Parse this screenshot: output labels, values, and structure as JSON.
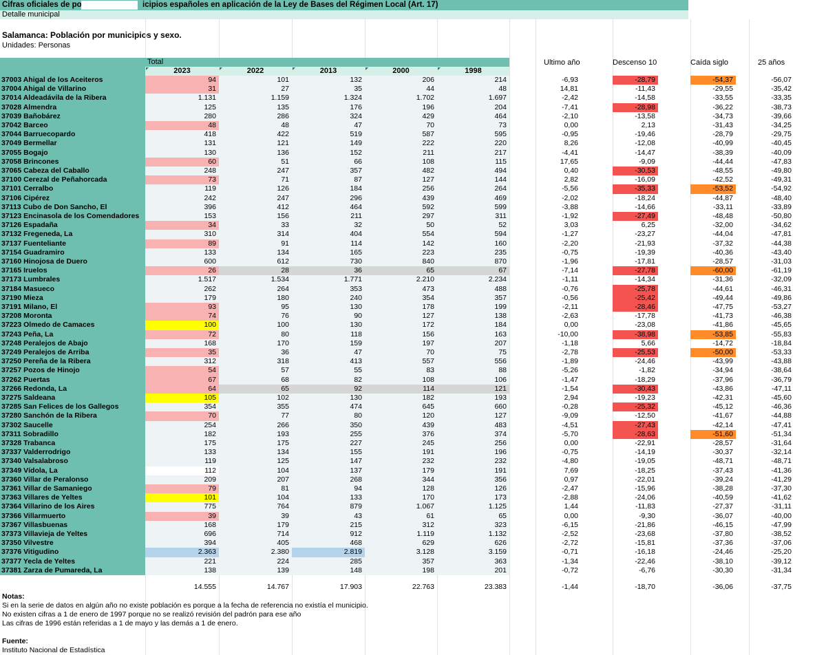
{
  "sheet": {
    "title_left": "Cifras oficiales de po",
    "title_right": "icipios españoles en aplicación de la Ley de Bases del Régimen Local (Art. 17)",
    "subtitle": "Detalle municipal",
    "table_title": "Salamanca: Población por municipios y sexo.",
    "units": "Unidades: Personas",
    "total_label": "Total",
    "years": [
      "2023",
      "2022",
      "2013",
      "2000",
      "1998"
    ],
    "extra_headers": [
      "Ultimo año",
      "Descenso 10",
      "Caída siglo",
      "25 años"
    ]
  },
  "colors": {
    "teal": "#6fbfb1",
    "teal_light": "#d7efe9",
    "pink": "#f8b2b2",
    "yellow": "#ffff00",
    "blue": "#b4d4ee",
    "grey": "#d6d6d6",
    "red": "#f4534f",
    "orange": "#ff8b2a"
  },
  "rows": [
    {
      "name": "37003 Ahigal de los Aceiteros",
      "v": [
        "94",
        "101",
        "132",
        "206",
        "214"
      ],
      "e": [
        "-6,93",
        "-28,79",
        "-54,37",
        "-56,07"
      ],
      "h0": "pink",
      "h2": "",
      "row": "",
      "he1": "red",
      "he2": "orange"
    },
    {
      "name": "37004 Ahigal de Villarino",
      "v": [
        "31",
        "27",
        "35",
        "44",
        "48"
      ],
      "e": [
        "14,81",
        "-11,43",
        "-29,55",
        "-35,42"
      ],
      "h0": "pink",
      "h2": "",
      "row": "",
      "he1": "",
      "he2": ""
    },
    {
      "name": "37014 Aldeadávila de la Ribera",
      "v": [
        "1.131",
        "1.159",
        "1.324",
        "1.702",
        "1.697"
      ],
      "e": [
        "-2,42",
        "-14,58",
        "-33,55",
        "-33,35"
      ],
      "h0": "",
      "h2": "",
      "row": "",
      "he1": "",
      "he2": ""
    },
    {
      "name": "37028 Almendra",
      "v": [
        "125",
        "135",
        "176",
        "196",
        "204"
      ],
      "e": [
        "-7,41",
        "-28,98",
        "-36,22",
        "-38,73"
      ],
      "h0": "",
      "h2": "",
      "row": "",
      "he1": "red",
      "he2": ""
    },
    {
      "name": "37039 Bañobárez",
      "v": [
        "280",
        "286",
        "324",
        "429",
        "464"
      ],
      "e": [
        "-2,10",
        "-13,58",
        "-34,73",
        "-39,66"
      ],
      "h0": "",
      "h2": "",
      "row": "",
      "he1": "",
      "he2": ""
    },
    {
      "name": "37042 Barceo",
      "v": [
        "48",
        "48",
        "47",
        "70",
        "73"
      ],
      "e": [
        "0,00",
        "2,13",
        "-31,43",
        "-34,25"
      ],
      "h0": "pink",
      "h2": "",
      "row": "",
      "he1": "",
      "he2": ""
    },
    {
      "name": "37044 Barruecopardo",
      "v": [
        "418",
        "422",
        "519",
        "587",
        "595"
      ],
      "e": [
        "-0,95",
        "-19,46",
        "-28,79",
        "-29,75"
      ],
      "h0": "",
      "h2": "",
      "row": "",
      "he1": "",
      "he2": ""
    },
    {
      "name": "37049 Bermellar",
      "v": [
        "131",
        "121",
        "149",
        "222",
        "220"
      ],
      "e": [
        "8,26",
        "-12,08",
        "-40,99",
        "-40,45"
      ],
      "h0": "",
      "h2": "",
      "row": "",
      "he1": "",
      "he2": ""
    },
    {
      "name": "37055 Bogajo",
      "v": [
        "130",
        "136",
        "152",
        "211",
        "217"
      ],
      "e": [
        "-4,41",
        "-14,47",
        "-38,39",
        "-40,09"
      ],
      "h0": "",
      "h2": "",
      "row": "",
      "he1": "",
      "he2": ""
    },
    {
      "name": "37058 Brincones",
      "v": [
        "60",
        "51",
        "66",
        "108",
        "115"
      ],
      "e": [
        "17,65",
        "-9,09",
        "-44,44",
        "-47,83"
      ],
      "h0": "pink",
      "h2": "",
      "row": "",
      "he1": "",
      "he2": ""
    },
    {
      "name": "37065 Cabeza del Caballo",
      "v": [
        "248",
        "247",
        "357",
        "482",
        "494"
      ],
      "e": [
        "0,40",
        "-30,53",
        "-48,55",
        "-49,80"
      ],
      "h0": "",
      "h2": "",
      "row": "",
      "he1": "red",
      "he2": ""
    },
    {
      "name": "37100 Cerezal de Peñahorcada",
      "v": [
        "73",
        "71",
        "87",
        "127",
        "144"
      ],
      "e": [
        "2,82",
        "-16,09",
        "-42,52",
        "-49,31"
      ],
      "h0": "pink",
      "h2": "",
      "row": "",
      "he1": "",
      "he2": ""
    },
    {
      "name": "37101 Cerralbo",
      "v": [
        "119",
        "126",
        "184",
        "256",
        "264"
      ],
      "e": [
        "-5,56",
        "-35,33",
        "-53,52",
        "-54,92"
      ],
      "h0": "",
      "h2": "",
      "row": "",
      "he1": "red",
      "he2": "orange"
    },
    {
      "name": "37106 Cipérez",
      "v": [
        "242",
        "247",
        "296",
        "439",
        "469"
      ],
      "e": [
        "-2,02",
        "-18,24",
        "-44,87",
        "-48,40"
      ],
      "h0": "",
      "h2": "",
      "row": "",
      "he1": "",
      "he2": ""
    },
    {
      "name": "37113 Cubo de Don Sancho, El",
      "v": [
        "396",
        "412",
        "464",
        "592",
        "599"
      ],
      "e": [
        "-3,88",
        "-14,66",
        "-33,11",
        "-33,89"
      ],
      "h0": "",
      "h2": "",
      "row": "",
      "he1": "",
      "he2": ""
    },
    {
      "name": "37123 Encinasola de los Comendadores",
      "v": [
        "153",
        "156",
        "211",
        "297",
        "311"
      ],
      "e": [
        "-1,92",
        "-27,49",
        "-48,48",
        "-50,80"
      ],
      "h0": "",
      "h2": "",
      "row": "",
      "he1": "red",
      "he2": ""
    },
    {
      "name": "37126 Espadaña",
      "v": [
        "34",
        "33",
        "32",
        "50",
        "52"
      ],
      "e": [
        "3,03",
        "6,25",
        "-32,00",
        "-34,62"
      ],
      "h0": "pink",
      "h2": "",
      "row": "",
      "he1": "",
      "he2": ""
    },
    {
      "name": "37132 Fregeneda, La",
      "v": [
        "310",
        "314",
        "404",
        "554",
        "594"
      ],
      "e": [
        "-1,27",
        "-23,27",
        "-44,04",
        "-47,81"
      ],
      "h0": "",
      "h2": "",
      "row": "",
      "he1": "",
      "he2": ""
    },
    {
      "name": "37137 Fuenteliante",
      "v": [
        "89",
        "91",
        "114",
        "142",
        "160"
      ],
      "e": [
        "-2,20",
        "-21,93",
        "-37,32",
        "-44,38"
      ],
      "h0": "pink",
      "h2": "",
      "row": "",
      "he1": "",
      "he2": ""
    },
    {
      "name": "37154 Guadramiro",
      "v": [
        "133",
        "134",
        "165",
        "223",
        "235"
      ],
      "e": [
        "-0,75",
        "-19,39",
        "-40,36",
        "-43,40"
      ],
      "h0": "",
      "h2": "",
      "row": "",
      "he1": "",
      "he2": ""
    },
    {
      "name": "37160 Hinojosa de Duero",
      "v": [
        "600",
        "612",
        "730",
        "840",
        "870"
      ],
      "e": [
        "-1,96",
        "-17,81",
        "-28,57",
        "-31,03"
      ],
      "h0": "",
      "h2": "",
      "row": "",
      "he1": "",
      "he2": ""
    },
    {
      "name": "37165 Iruelos",
      "v": [
        "26",
        "28",
        "36",
        "65",
        "67"
      ],
      "e": [
        "-7,14",
        "-27,78",
        "-60,00",
        "-61,19"
      ],
      "h0": "pink",
      "h2": "",
      "row": "grey",
      "he1": "red",
      "he2": "orange"
    },
    {
      "name": "37173 Lumbrales",
      "v": [
        "1.517",
        "1.534",
        "1.771",
        "2.210",
        "2.234"
      ],
      "e": [
        "-1,11",
        "-14,34",
        "-31,36",
        "-32,09"
      ],
      "h0": "",
      "h2": "",
      "row": "",
      "he1": "",
      "he2": ""
    },
    {
      "name": "37184 Masueco",
      "v": [
        "262",
        "264",
        "353",
        "473",
        "488"
      ],
      "e": [
        "-0,76",
        "-25,78",
        "-44,61",
        "-46,31"
      ],
      "h0": "",
      "h2": "",
      "row": "",
      "he1": "red",
      "he2": ""
    },
    {
      "name": "37190 Mieza",
      "v": [
        "179",
        "180",
        "240",
        "354",
        "357"
      ],
      "e": [
        "-0,56",
        "-25,42",
        "-49,44",
        "-49,86"
      ],
      "h0": "",
      "h2": "",
      "row": "",
      "he1": "red",
      "he2": ""
    },
    {
      "name": "37191 Milano, El",
      "v": [
        "93",
        "95",
        "130",
        "178",
        "199"
      ],
      "e": [
        "-2,11",
        "-28,46",
        "-47,75",
        "-53,27"
      ],
      "h0": "pink",
      "h2": "",
      "row": "",
      "he1": "red",
      "he2": ""
    },
    {
      "name": "37208 Moronta",
      "v": [
        "74",
        "76",
        "90",
        "127",
        "138"
      ],
      "e": [
        "-2,63",
        "-17,78",
        "-41,73",
        "-46,38"
      ],
      "h0": "pink",
      "h2": "",
      "row": "",
      "he1": "",
      "he2": ""
    },
    {
      "name": "37223 Olmedo de Camaces",
      "v": [
        "100",
        "100",
        "130",
        "172",
        "184"
      ],
      "e": [
        "0,00",
        "-23,08",
        "-41,86",
        "-45,65"
      ],
      "h0": "yellow",
      "h2": "",
      "row": "",
      "he1": "",
      "he2": ""
    },
    {
      "name": "37243 Peña, La",
      "v": [
        "72",
        "80",
        "118",
        "156",
        "163"
      ],
      "e": [
        "-10,00",
        "-38,98",
        "-53,85",
        "-55,83"
      ],
      "h0": "pink",
      "h2": "",
      "row": "",
      "he1": "red",
      "he2": "orange"
    },
    {
      "name": "37248 Peralejos de Abajo",
      "v": [
        "168",
        "170",
        "159",
        "197",
        "207"
      ],
      "e": [
        "-1,18",
        "5,66",
        "-14,72",
        "-18,84"
      ],
      "h0": "",
      "h2": "",
      "row": "",
      "he1": "",
      "he2": ""
    },
    {
      "name": "37249 Peralejos de Arriba",
      "v": [
        "35",
        "36",
        "47",
        "70",
        "75"
      ],
      "e": [
        "-2,78",
        "-25,53",
        "-50,00",
        "-53,33"
      ],
      "h0": "pink",
      "h2": "",
      "row": "",
      "he1": "red",
      "he2": "orange"
    },
    {
      "name": "37250 Pereña de la Ribera",
      "v": [
        "312",
        "318",
        "413",
        "557",
        "556"
      ],
      "e": [
        "-1,89",
        "-24,46",
        "-43,99",
        "-43,88"
      ],
      "h0": "",
      "h2": "",
      "row": "",
      "he1": "",
      "he2": ""
    },
    {
      "name": "37257 Pozos de Hinojo",
      "v": [
        "54",
        "57",
        "55",
        "83",
        "88"
      ],
      "e": [
        "-5,26",
        "-1,82",
        "-34,94",
        "-38,64"
      ],
      "h0": "pink",
      "h2": "",
      "row": "",
      "he1": "",
      "he2": ""
    },
    {
      "name": "37262 Puertas",
      "v": [
        "67",
        "68",
        "82",
        "108",
        "106"
      ],
      "e": [
        "-1,47",
        "-18,29",
        "-37,96",
        "-36,79"
      ],
      "h0": "pink",
      "h2": "",
      "row": "",
      "he1": "",
      "he2": ""
    },
    {
      "name": "37266 Redonda, La",
      "v": [
        "64",
        "65",
        "92",
        "114",
        "121"
      ],
      "e": [
        "-1,54",
        "-30,43",
        "-43,86",
        "-47,11"
      ],
      "h0": "pink",
      "h2": "",
      "row": "grey",
      "he1": "red",
      "he2": ""
    },
    {
      "name": "37275 Saldeana",
      "v": [
        "105",
        "102",
        "130",
        "182",
        "193"
      ],
      "e": [
        "2,94",
        "-19,23",
        "-42,31",
        "-45,60"
      ],
      "h0": "yellow",
      "h2": "",
      "row": "",
      "he1": "",
      "he2": ""
    },
    {
      "name": "37285 San Felices de los Gallegos",
      "v": [
        "354",
        "355",
        "474",
        "645",
        "660"
      ],
      "e": [
        "-0,28",
        "-25,32",
        "-45,12",
        "-46,36"
      ],
      "h0": "",
      "h2": "",
      "row": "",
      "he1": "red",
      "he2": ""
    },
    {
      "name": "37280 Sanchón de la Ribera",
      "v": [
        "70",
        "77",
        "80",
        "120",
        "127"
      ],
      "e": [
        "-9,09",
        "-12,50",
        "-41,67",
        "-44,88"
      ],
      "h0": "pink",
      "h2": "",
      "row": "",
      "he1": "",
      "he2": ""
    },
    {
      "name": "37302 Saucelle",
      "v": [
        "254",
        "266",
        "350",
        "439",
        "483"
      ],
      "e": [
        "-4,51",
        "-27,43",
        "-42,14",
        "-47,41"
      ],
      "h0": "",
      "h2": "",
      "row": "",
      "he1": "red",
      "he2": ""
    },
    {
      "name": "37311 Sobradillo",
      "v": [
        "182",
        "193",
        "255",
        "376",
        "374"
      ],
      "e": [
        "-5,70",
        "-28,63",
        "-51,60",
        "-51,34"
      ],
      "h0": "",
      "h2": "",
      "row": "",
      "he1": "red",
      "he2": "orange"
    },
    {
      "name": "37328 Trabanca",
      "v": [
        "175",
        "175",
        "227",
        "245",
        "256"
      ],
      "e": [
        "0,00",
        "-22,91",
        "-28,57",
        "-31,64"
      ],
      "h0": "",
      "h2": "",
      "row": "",
      "he1": "",
      "he2": ""
    },
    {
      "name": "37337 Valderrodrigo",
      "v": [
        "133",
        "134",
        "155",
        "191",
        "196"
      ],
      "e": [
        "-0,75",
        "-14,19",
        "-30,37",
        "-32,14"
      ],
      "h0": "",
      "h2": "",
      "row": "",
      "he1": "",
      "he2": ""
    },
    {
      "name": "37340 Valsalabroso",
      "v": [
        "119",
        "125",
        "147",
        "232",
        "232"
      ],
      "e": [
        "-4,80",
        "-19,05",
        "-48,71",
        "-48,71"
      ],
      "h0": "",
      "h2": "",
      "row": "",
      "he1": "",
      "he2": ""
    },
    {
      "name": "37349 Vídola, La",
      "v": [
        "112",
        "104",
        "137",
        "179",
        "191"
      ],
      "e": [
        "7,69",
        "-18,25",
        "-37,43",
        "-41,36"
      ],
      "h0": "white",
      "h2": "",
      "row": "",
      "he1": "",
      "he2": ""
    },
    {
      "name": "37360 Villar de Peralonso",
      "v": [
        "209",
        "207",
        "268",
        "344",
        "356"
      ],
      "e": [
        "0,97",
        "-22,01",
        "-39,24",
        "-41,29"
      ],
      "h0": "",
      "h2": "",
      "row": "",
      "he1": "",
      "he2": ""
    },
    {
      "name": "37361 Villar de Samaniego",
      "v": [
        "79",
        "81",
        "94",
        "128",
        "126"
      ],
      "e": [
        "-2,47",
        "-15,96",
        "-38,28",
        "-37,30"
      ],
      "h0": "pink",
      "h2": "",
      "row": "",
      "he1": "",
      "he2": ""
    },
    {
      "name": "37363 Villares de Yeltes",
      "v": [
        "101",
        "104",
        "133",
        "170",
        "173"
      ],
      "e": [
        "-2,88",
        "-24,06",
        "-40,59",
        "-41,62"
      ],
      "h0": "yellow",
      "h2": "",
      "row": "",
      "he1": "",
      "he2": ""
    },
    {
      "name": "37364 Villarino de los Aires",
      "v": [
        "775",
        "764",
        "879",
        "1.067",
        "1.125"
      ],
      "e": [
        "1,44",
        "-11,83",
        "-27,37",
        "-31,11"
      ],
      "h0": "",
      "h2": "",
      "row": "",
      "he1": "",
      "he2": ""
    },
    {
      "name": "37366 Villarmuerto",
      "v": [
        "39",
        "39",
        "43",
        "61",
        "65"
      ],
      "e": [
        "0,00",
        "-9,30",
        "-36,07",
        "-40,00"
      ],
      "h0": "pink",
      "h2": "",
      "row": "",
      "he1": "",
      "he2": ""
    },
    {
      "name": "37367 Villasbuenas",
      "v": [
        "168",
        "179",
        "215",
        "312",
        "323"
      ],
      "e": [
        "-6,15",
        "-21,86",
        "-46,15",
        "-47,99"
      ],
      "h0": "",
      "h2": "",
      "row": "",
      "he1": "",
      "he2": ""
    },
    {
      "name": "37373 Villavieja de Yeltes",
      "v": [
        "696",
        "714",
        "912",
        "1.119",
        "1.132"
      ],
      "e": [
        "-2,52",
        "-23,68",
        "-37,80",
        "-38,52"
      ],
      "h0": "",
      "h2": "",
      "row": "",
      "he1": "",
      "he2": ""
    },
    {
      "name": "37350 Vilvestre",
      "v": [
        "394",
        "405",
        "468",
        "629",
        "626"
      ],
      "e": [
        "-2,72",
        "-15,81",
        "-37,36",
        "-37,06"
      ],
      "h0": "",
      "h2": "",
      "row": "",
      "he1": "",
      "he2": ""
    },
    {
      "name": "37376 Vitigudino",
      "v": [
        "2.363",
        "2.380",
        "2.819",
        "3.128",
        "3.159"
      ],
      "e": [
        "-0,71",
        "-16,18",
        "-24,46",
        "-25,20"
      ],
      "h0": "blue",
      "h2": "blue",
      "row": "",
      "he1": "",
      "he2": ""
    },
    {
      "name": "37377 Yecla de Yeltes",
      "v": [
        "221",
        "224",
        "285",
        "357",
        "363"
      ],
      "e": [
        "-1,34",
        "-22,46",
        "-38,10",
        "-39,12"
      ],
      "h0": "",
      "h2": "",
      "row": "",
      "he1": "",
      "he2": ""
    },
    {
      "name": "37381 Zarza de Pumareda, La",
      "v": [
        "138",
        "139",
        "148",
        "198",
        "201"
      ],
      "e": [
        "-0,72",
        "-6,76",
        "-30,30",
        "-31,34"
      ],
      "h0": "",
      "h2": "",
      "row": "",
      "he1": "",
      "he2": ""
    }
  ],
  "totals": {
    "v": [
      "14.555",
      "14.767",
      "17.903",
      "22.763",
      "23.383"
    ],
    "e": [
      "-1,44",
      "-18,70",
      "-36,06",
      "-37,75"
    ]
  },
  "notes": {
    "header": "Notas:",
    "lines": [
      "Si en la serie de datos en algún año no existe población es porque a la fecha de referencia no existía el municipio.",
      "No existen cifras a 1 de enero de 1997 porque no se realizó revisión del padrón para ese año",
      "Las cifras de 1996 están referidas a 1 de mayo y  las demás a 1 de enero."
    ],
    "source_header": "Fuente:",
    "source": "Instituto Nacional de Estadística"
  }
}
